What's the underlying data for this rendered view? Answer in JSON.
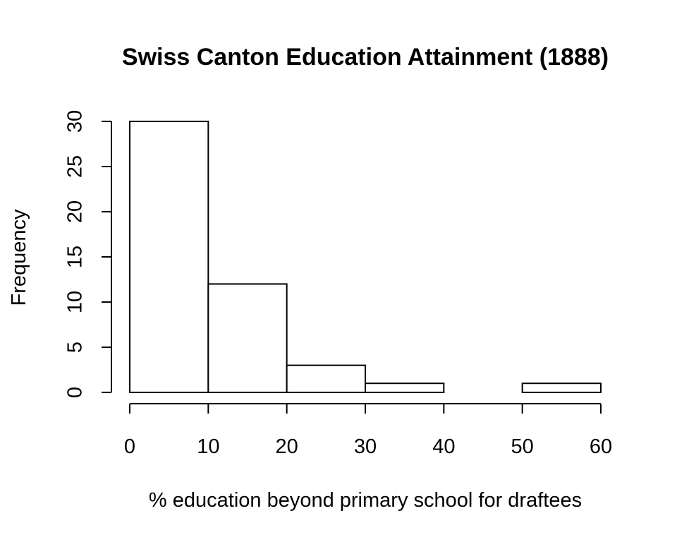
{
  "chart_data": {
    "type": "bar",
    "title": "Swiss Canton Education Attainment (1888)",
    "xlabel": "% education beyond primary school for draftees",
    "ylabel": "Frequency",
    "bins": [
      {
        "from": 0,
        "to": 10,
        "count": 30
      },
      {
        "from": 10,
        "to": 20,
        "count": 12
      },
      {
        "from": 20,
        "to": 30,
        "count": 3
      },
      {
        "from": 30,
        "to": 40,
        "count": 1
      },
      {
        "from": 40,
        "to": 50,
        "count": 0
      },
      {
        "from": 50,
        "to": 60,
        "count": 1
      }
    ],
    "xlim": [
      0,
      60
    ],
    "ylim": [
      0,
      30
    ],
    "x_ticks": [
      "0",
      "10",
      "20",
      "30",
      "40",
      "50",
      "60"
    ],
    "y_ticks": [
      "0",
      "5",
      "10",
      "15",
      "20",
      "25",
      "30"
    ],
    "grid": false,
    "legend": "none",
    "colors": {
      "bar_fill": "#ffffff",
      "bar_stroke": "#000000"
    }
  }
}
